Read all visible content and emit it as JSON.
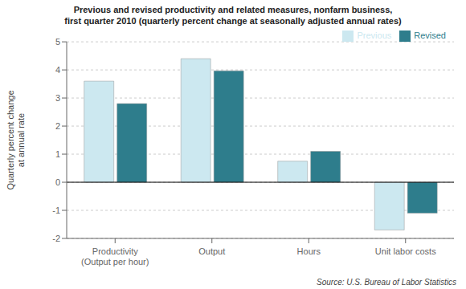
{
  "chart_data": {
    "type": "bar",
    "title": "Previous and revised productivity and related measures, nonfarm business,\nfirst quarter 2010 (quarterly percent change at seasonally adjusted annual rates)",
    "categories": [
      "Productivity\n(Output per hour)",
      "Output",
      "Hours",
      "Unit labor costs"
    ],
    "series": [
      {
        "name": "Previous",
        "color": "#cce8f0",
        "values": [
          3.6,
          4.4,
          0.75,
          -1.7
        ]
      },
      {
        "name": "Revised",
        "color": "#2e7d8c",
        "values": [
          2.8,
          3.97,
          1.1,
          -1.1
        ]
      }
    ],
    "ylabel": "Quarterly percent change\nat annual rate",
    "ylim": [
      -2,
      5
    ],
    "yticks": [
      -2,
      -1,
      0,
      1,
      2,
      3,
      4,
      5
    ],
    "grid": true,
    "legend": "upper right",
    "source": "Source: U.S. Bureau of Labor Statistics"
  }
}
